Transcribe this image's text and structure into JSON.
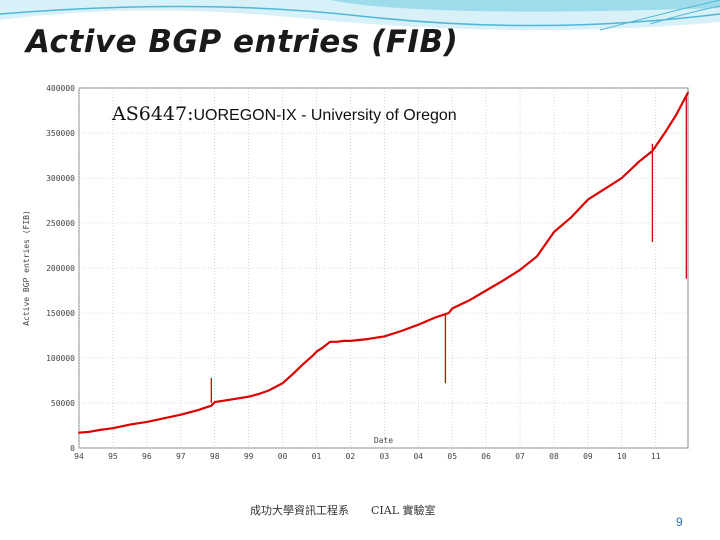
{
  "slide": {
    "title": "Active BGP entries (FIB)",
    "subtitle_as": "AS6447:",
    "subtitle_desc": "UOREGON-IX - University of Oregon",
    "footer": "成功大學資訊工程系　　CIAL 實驗室",
    "page_number": "9"
  },
  "colors": {
    "line": "#dd0000",
    "accent": "#7fd3e6",
    "accent_dark": "#2a9bc0"
  },
  "chart_data": {
    "type": "line",
    "title": "",
    "xlabel": "Date",
    "ylabel": "Active BGP entries (FIB)",
    "xlim": [
      1994.0,
      2011.95
    ],
    "ylim": [
      0,
      400000
    ],
    "grid": true,
    "x_tick_labels": [
      "94",
      "95",
      "96",
      "97",
      "98",
      "99",
      "00",
      "01",
      "02",
      "03",
      "04",
      "05",
      "06",
      "07",
      "08",
      "09",
      "10",
      "11"
    ],
    "x_tick_values": [
      1994,
      1995,
      1996,
      1997,
      1998,
      1999,
      2000,
      2001,
      2002,
      2003,
      2004,
      2005,
      2006,
      2007,
      2008,
      2009,
      2010,
      2011
    ],
    "y_tick_labels": [
      "0",
      "50000",
      "100000",
      "150000",
      "200000",
      "250000",
      "300000",
      "350000",
      "400000"
    ],
    "y_tick_values": [
      0,
      50000,
      100000,
      150000,
      200000,
      250000,
      300000,
      350000,
      400000
    ],
    "series": [
      {
        "x": [
          1994.0,
          1994.3,
          1994.6,
          1995.0,
          1995.5,
          1996.0,
          1996.5,
          1997.0,
          1997.5,
          1997.9,
          1998.0,
          1998.5,
          1999.0,
          1999.3,
          1999.6,
          2000.0,
          2000.3,
          2000.6,
          2000.9,
          2001.0,
          2001.2,
          2001.4,
          2001.6,
          2001.8,
          2002.0,
          2002.5,
          2003.0,
          2003.5,
          2004.0,
          2004.5,
          2004.9,
          2005.0,
          2005.5,
          2006.0,
          2006.5,
          2007.0,
          2007.5,
          2008.0,
          2008.5,
          2009.0,
          2009.5,
          2010.0,
          2010.5,
          2010.9,
          2011.3,
          2011.6,
          2011.95
        ],
        "y": [
          17000,
          18000,
          20000,
          22000,
          26000,
          29000,
          33000,
          37000,
          42000,
          47000,
          51000,
          54000,
          57000,
          60000,
          64000,
          72000,
          82000,
          93000,
          103000,
          107000,
          112000,
          118000,
          118000,
          119000,
          119000,
          121000,
          124000,
          130000,
          137000,
          145000,
          150000,
          155000,
          164000,
          175000,
          186000,
          198000,
          213000,
          240000,
          256000,
          276000,
          288000,
          300000,
          318000,
          330000,
          352000,
          370000,
          395000
        ]
      }
    ],
    "spikes": [
      {
        "x": 1997.9,
        "y_top": 78000,
        "y_bottom": 50000
      },
      {
        "x": 2004.8,
        "y_top": 150000,
        "y_bottom": 72000
      },
      {
        "x": 2010.9,
        "y_top": 338000,
        "y_bottom": 229000
      },
      {
        "x": 2011.9,
        "y_top": 390000,
        "y_bottom": 188000
      }
    ]
  }
}
